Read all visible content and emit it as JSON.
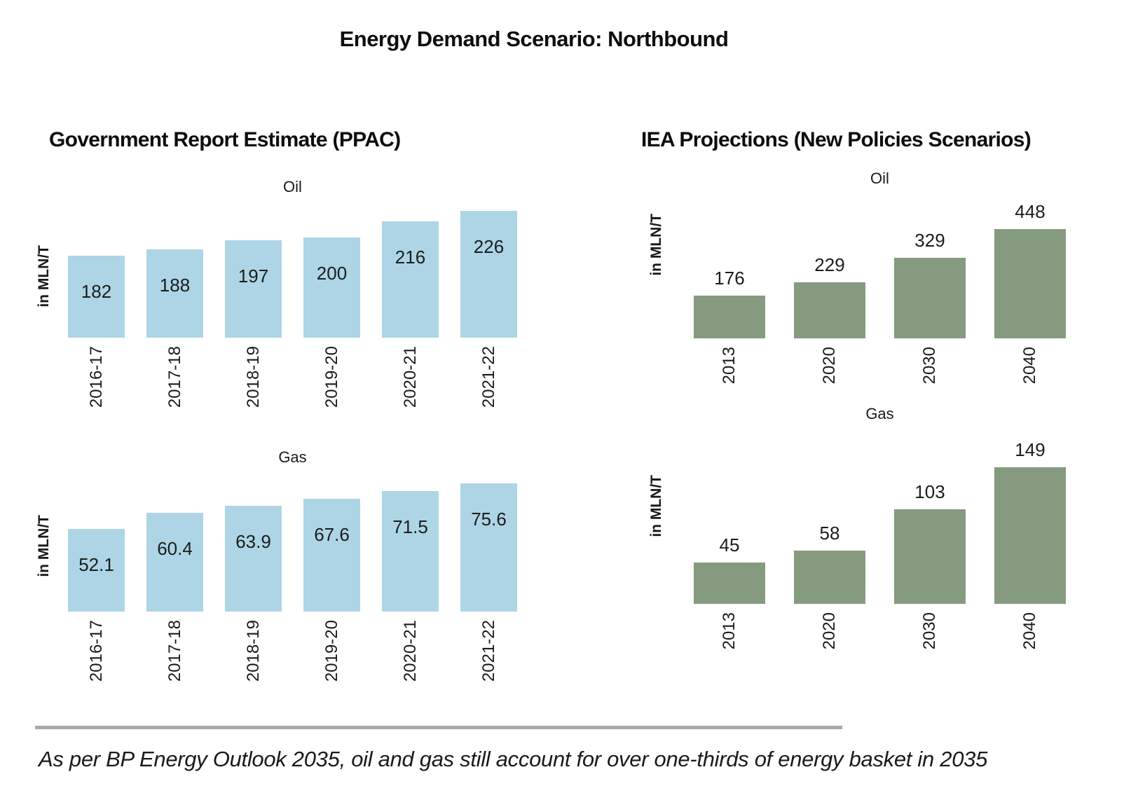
{
  "page": {
    "title": "Energy Demand Scenario: Northbound",
    "footnote": "As per BP Energy Outlook 2035, oil and gas still account for over one-thirds of energy basket in 2035"
  },
  "sections": {
    "left": {
      "heading": "Government Report Estimate (PPAC)"
    },
    "right": {
      "heading": "IEA Projections (New Policies Scenarios)"
    }
  },
  "colors": {
    "ppac_bar": "#add5e6",
    "iea_bar": "#859a7f",
    "divider": "#a9a9a9"
  },
  "chart_data": [
    {
      "type": "bar",
      "group": "Government Report Estimate (PPAC)",
      "title": "Oil",
      "ylabel": "in MLN/T",
      "categories": [
        "2016-17",
        "2017-18",
        "2018-19",
        "2019-20",
        "2020-21",
        "2021-22"
      ],
      "values": [
        182,
        188,
        197,
        200,
        216,
        226
      ],
      "value_labels": [
        "182",
        "188",
        "197",
        "200",
        "216",
        "226"
      ],
      "bar_color": "#add5e6",
      "value_label_position": "inside",
      "legend": "none",
      "grid": false
    },
    {
      "type": "bar",
      "group": "Government Report Estimate (PPAC)",
      "title": "Gas",
      "ylabel": "in MLN/T",
      "categories": [
        "2016-17",
        "2017-18",
        "2018-19",
        "2019-20",
        "2020-21",
        "2021-22"
      ],
      "values": [
        52.1,
        60.4,
        63.9,
        67.6,
        71.5,
        75.6
      ],
      "value_labels": [
        "52.1",
        "60.4",
        "63.9",
        "67.6",
        "71.5",
        "75.6"
      ],
      "bar_color": "#add5e6",
      "value_label_position": "inside",
      "legend": "none",
      "grid": false
    },
    {
      "type": "bar",
      "group": "IEA Projections (New Policies Scenarios)",
      "title": "Oil",
      "ylabel": "in MLN/T",
      "categories": [
        "2013",
        "2020",
        "2030",
        "2040"
      ],
      "values": [
        176,
        229,
        329,
        448
      ],
      "value_labels": [
        "176",
        "229",
        "329",
        "448"
      ],
      "bar_color": "#859a7f",
      "value_label_position": "above",
      "legend": "none",
      "grid": false
    },
    {
      "type": "bar",
      "group": "IEA Projections (New Policies Scenarios)",
      "title": "Gas",
      "ylabel": "in MLN/T",
      "categories": [
        "2013",
        "2020",
        "2030",
        "2040"
      ],
      "values": [
        45,
        58,
        103,
        149
      ],
      "value_labels": [
        "45",
        "58",
        "103",
        "149"
      ],
      "bar_color": "#859a7f",
      "value_label_position": "above",
      "legend": "none",
      "grid": false
    }
  ]
}
